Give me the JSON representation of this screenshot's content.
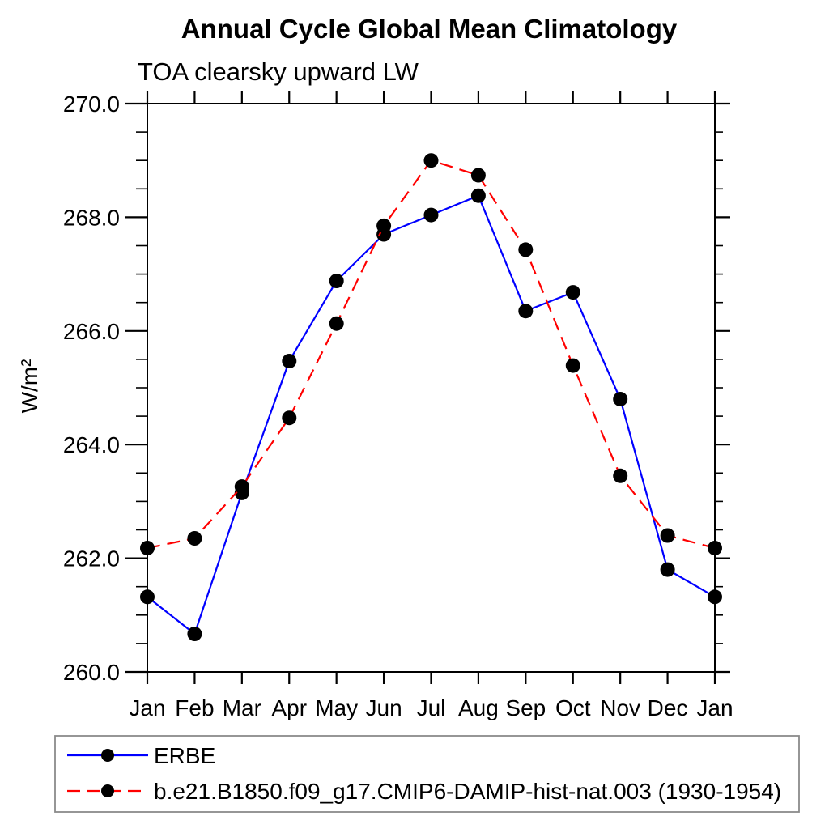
{
  "title": "Annual Cycle Global Mean Climatology",
  "subtitle": "TOA clearsky upward LW",
  "chart_data": {
    "type": "line",
    "title": "Annual Cycle Global Mean Climatology",
    "subtitle": "TOA clearsky upward LW",
    "xlabel": "",
    "ylabel": "W/m²",
    "categories": [
      "Jan",
      "Feb",
      "Mar",
      "Apr",
      "May",
      "Jun",
      "Jul",
      "Aug",
      "Sep",
      "Oct",
      "Nov",
      "Dec",
      "Jan"
    ],
    "series": [
      {
        "name": "ERBE",
        "color": "#0000ff",
        "line_style": "solid",
        "marker": "filled-circle",
        "marker_color": "#000000",
        "values": [
          261.32,
          260.67,
          263.15,
          265.47,
          266.88,
          267.7,
          268.04,
          268.38,
          266.35,
          266.68,
          264.8,
          261.8,
          261.32
        ]
      },
      {
        "name": "b.e21.B1850.f09_g17.CMIP6-DAMIP-hist-nat.003 (1930-1954)",
        "color": "#ff0000",
        "line_style": "dashed",
        "marker": "filled-circle",
        "marker_color": "#000000",
        "values": [
          262.18,
          262.35,
          263.26,
          264.47,
          266.13,
          267.85,
          269.0,
          268.74,
          267.43,
          265.39,
          263.45,
          262.4,
          262.18
        ]
      }
    ],
    "ylim": [
      260.0,
      270.0
    ],
    "ytick_major_step": 2.0,
    "ytick_minor_step": 0.5,
    "ytick_labels": [
      "260.0",
      "262.0",
      "264.0",
      "266.0",
      "268.0",
      "270.0"
    ],
    "grid": false,
    "legend_position": "bottom",
    "axis_color": "#000000"
  }
}
